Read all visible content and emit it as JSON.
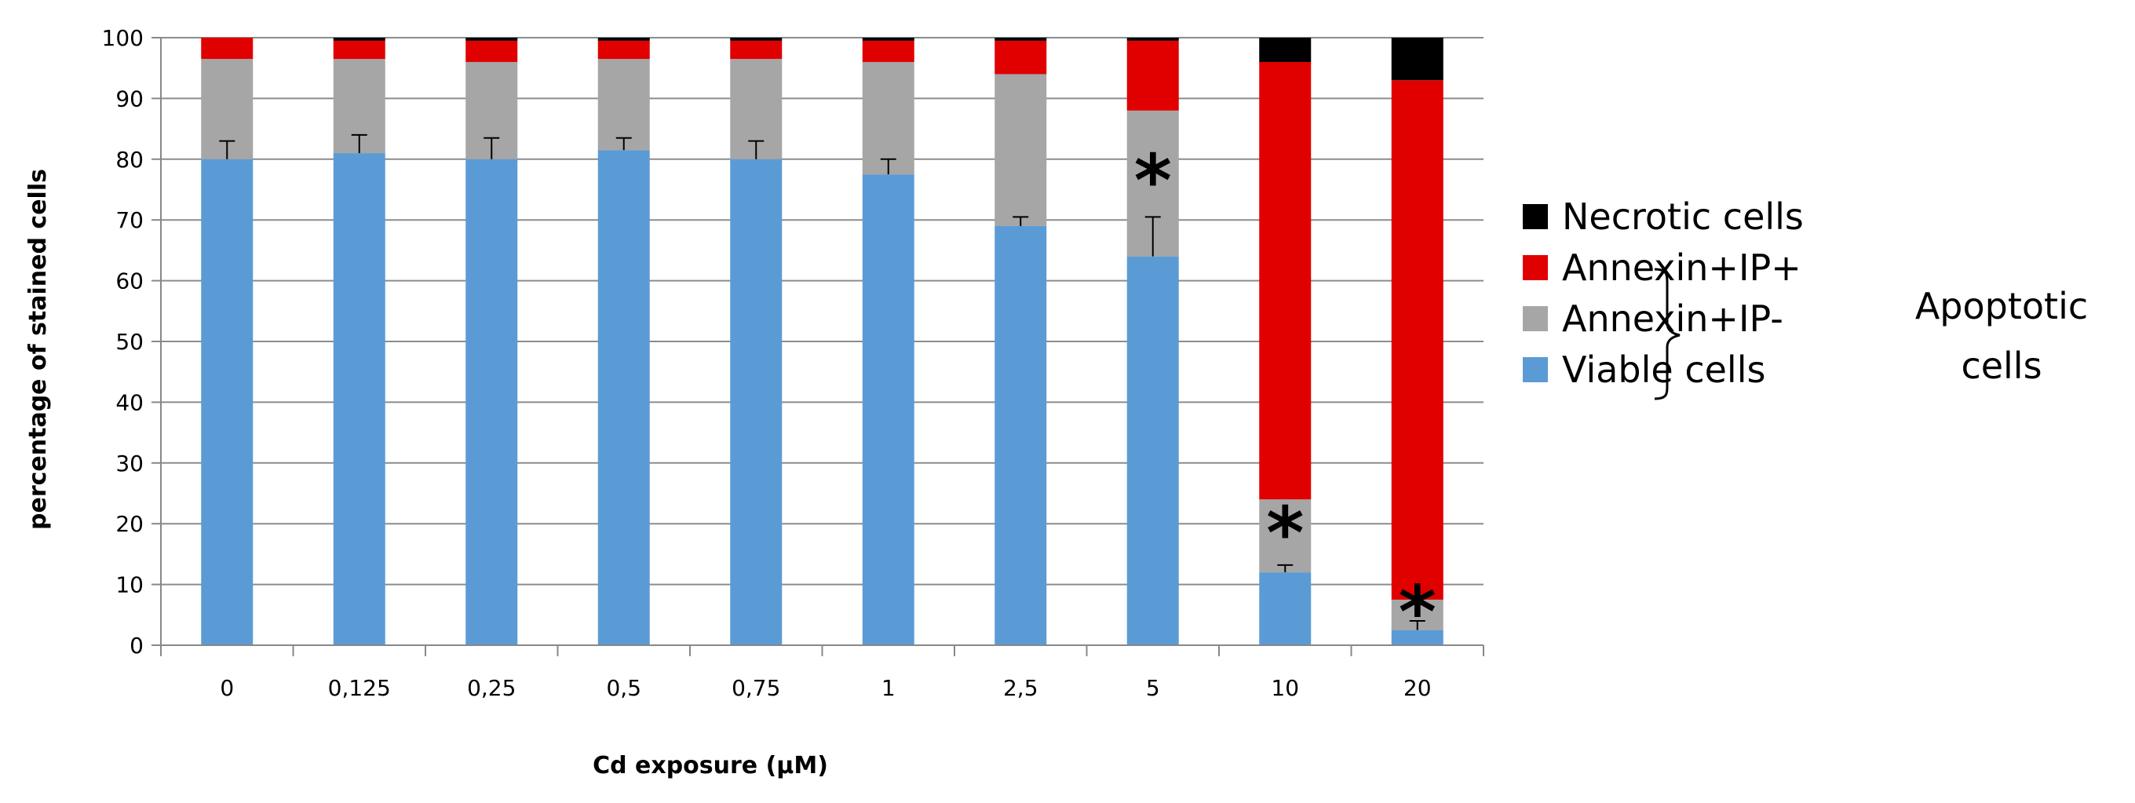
{
  "chart_data": {
    "type": "bar",
    "stacked": true,
    "xlabel": "Cd exposure (µM)",
    "ylabel": "percentage of stained cells",
    "ylim": [
      0,
      100
    ],
    "yticks": [
      0,
      10,
      20,
      30,
      40,
      50,
      60,
      70,
      80,
      90,
      100
    ],
    "grid": true,
    "legend_position": "right",
    "categories": [
      "0",
      "0,125",
      "0,25",
      "0,5",
      "0,75",
      "1",
      "2,5",
      "5",
      "10",
      "20"
    ],
    "series": [
      {
        "name": "Viable cells",
        "color": "#5b9bd5",
        "values": [
          80,
          81,
          80,
          81.5,
          80,
          77.5,
          69,
          64,
          12,
          2.5
        ]
      },
      {
        "name": "Annexin+IP-",
        "color": "#a6a6a6",
        "values": [
          16.5,
          15.5,
          16,
          15,
          16.5,
          18.5,
          25,
          24,
          12,
          5
        ]
      },
      {
        "name": "Annexin+IP+",
        "color": "#e00000",
        "values": [
          3.5,
          3,
          3.5,
          3,
          3,
          3.5,
          5.5,
          11.5,
          72,
          85.5
        ]
      },
      {
        "name": "Necrotic cells",
        "color": "#000000",
        "values": [
          0,
          0.5,
          0.5,
          0.5,
          0.5,
          0.5,
          0.5,
          0.5,
          4,
          7
        ]
      }
    ],
    "error_bars": {
      "series": "Viable cells",
      "upper": [
        3,
        3,
        3.5,
        2,
        3,
        2.5,
        1.5,
        6.5,
        1.2,
        1.5
      ]
    },
    "significance_markers": [
      {
        "category": "5",
        "label": "*",
        "y": 77
      },
      {
        "category": "10",
        "label": "*",
        "y": 19
      },
      {
        "category": "20",
        "label": "*",
        "y": 6
      }
    ],
    "legend_order": [
      "Necrotic cells",
      "Annexin+IP+",
      "Annexin+IP-",
      "Viable cells"
    ],
    "bracket_label": [
      "Apoptotic",
      "cells"
    ]
  }
}
